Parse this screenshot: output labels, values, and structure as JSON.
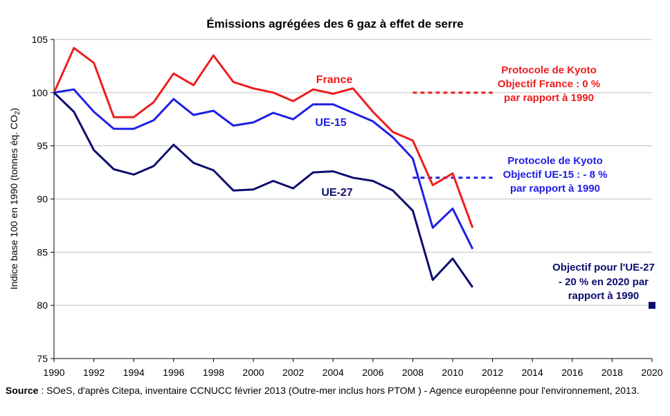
{
  "chart_data": {
    "type": "line",
    "title": "Émissions agrégées des 6 gaz à effet de serre",
    "ylabel_prefix": "Indice base 100 en 1990 (tonnes éq. CO",
    "ylabel_sub": "2",
    "ylabel_suffix": ")",
    "xlim": [
      1990,
      2020
    ],
    "ylim": [
      75,
      105
    ],
    "x_ticks": [
      1990,
      1992,
      1994,
      1996,
      1998,
      2000,
      2002,
      2004,
      2006,
      2008,
      2010,
      2012,
      2014,
      2016,
      2018,
      2020
    ],
    "y_ticks": [
      75,
      80,
      85,
      90,
      95,
      100,
      105
    ],
    "grid": true,
    "x": [
      1990,
      1991,
      1992,
      1993,
      1994,
      1995,
      1996,
      1997,
      1998,
      1999,
      2000,
      2001,
      2002,
      2003,
      2004,
      2005,
      2006,
      2007,
      2008,
      2009,
      2010,
      2011
    ],
    "series": [
      {
        "name": "France",
        "color": "#ee1c1c",
        "values": [
          100.0,
          104.2,
          102.8,
          97.7,
          97.7,
          99.1,
          101.8,
          100.7,
          103.5,
          101.0,
          100.4,
          100.0,
          99.2,
          100.3,
          99.9,
          100.4,
          98.2,
          96.3,
          95.5,
          91.3,
          92.4,
          87.3
        ]
      },
      {
        "name": "UE-15",
        "color": "#1e1ee6",
        "values": [
          100.0,
          100.3,
          98.2,
          96.6,
          96.6,
          97.4,
          99.4,
          97.9,
          98.3,
          96.9,
          97.2,
          98.1,
          97.5,
          98.9,
          98.9,
          98.1,
          97.3,
          95.8,
          93.8,
          87.3,
          89.1,
          85.3
        ]
      },
      {
        "name": "UE-27",
        "color": "#0c0c6e",
        "values": [
          100.0,
          98.2,
          94.6,
          92.8,
          92.3,
          93.1,
          95.1,
          93.4,
          92.7,
          90.8,
          90.9,
          91.7,
          91.0,
          92.5,
          92.6,
          92.0,
          91.7,
          90.8,
          88.9,
          82.4,
          84.4,
          81.7
        ]
      }
    ],
    "targets": [
      {
        "name": "kyoto-france",
        "color": "#ee1c1c",
        "x_start": 2008,
        "x_end": 2012,
        "value": 100
      },
      {
        "name": "kyoto-ue15",
        "color": "#1e1ee6",
        "x_start": 2008,
        "x_end": 2012,
        "value": 92
      },
      {
        "name": "ue27-2020",
        "color": "#0c0c6e",
        "x": 2020,
        "value": 80
      }
    ],
    "annotations": {
      "kyoto_france": [
        "Protocole de Kyoto",
        "Objectif France : 0 %",
        "par rapport à 1990"
      ],
      "kyoto_ue15": [
        "Protocole de Kyoto",
        "Objectif UE-15 : -  8 %",
        "par rapport à 1990"
      ],
      "ue27_target": [
        "Objectif pour l'UE-27",
        "-  20 % en 2020 par",
        "rapport à 1990"
      ]
    }
  },
  "source": {
    "label": "Source",
    "text": " : SOeS, d'après Citepa, inventaire CCNUCC février 2013 (Outre-mer inclus hors PTOM ) - Agence européenne pour l'environnement, 2013."
  }
}
